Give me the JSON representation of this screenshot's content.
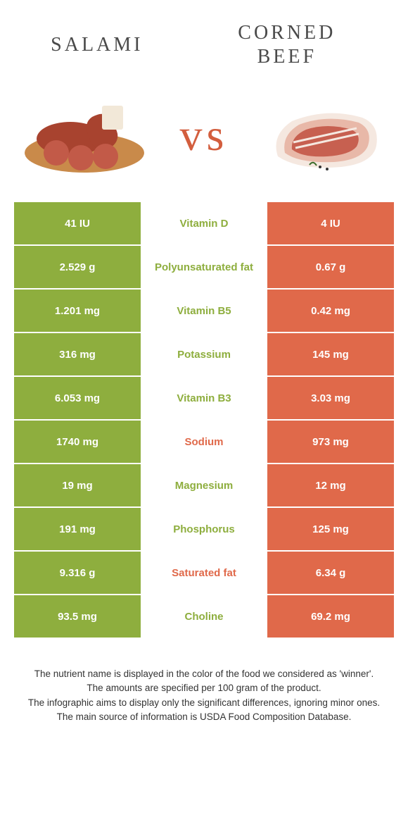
{
  "left": {
    "name": "Salami",
    "color": "#8eae3e"
  },
  "right": {
    "name": "Corned Beef",
    "color": "#e0694a"
  },
  "vs": "vs",
  "nutrient_colors": {
    "left": "#8eae3e",
    "right": "#e0694a"
  },
  "rows": [
    {
      "nutrient": "Vitamin D",
      "left": "41 IU",
      "right": "4 IU",
      "winner": "left"
    },
    {
      "nutrient": "Polyunsaturated fat",
      "left": "2.529 g",
      "right": "0.67 g",
      "winner": "left"
    },
    {
      "nutrient": "Vitamin B5",
      "left": "1.201 mg",
      "right": "0.42 mg",
      "winner": "left"
    },
    {
      "nutrient": "Potassium",
      "left": "316 mg",
      "right": "145 mg",
      "winner": "left"
    },
    {
      "nutrient": "Vitamin B3",
      "left": "6.053 mg",
      "right": "3.03 mg",
      "winner": "left"
    },
    {
      "nutrient": "Sodium",
      "left": "1740 mg",
      "right": "973 mg",
      "winner": "right"
    },
    {
      "nutrient": "Magnesium",
      "left": "19 mg",
      "right": "12 mg",
      "winner": "left"
    },
    {
      "nutrient": "Phosphorus",
      "left": "191 mg",
      "right": "125 mg",
      "winner": "left"
    },
    {
      "nutrient": "Saturated fat",
      "left": "9.316 g",
      "right": "6.34 g",
      "winner": "right"
    },
    {
      "nutrient": "Choline",
      "left": "93.5 mg",
      "right": "69.2 mg",
      "winner": "left"
    }
  ],
  "footer": [
    "The nutrient name is displayed in the color of the food we considered as 'winner'.",
    "The amounts are specified per 100 gram of the product.",
    "The infographic aims to display only the significant differences, ignoring minor ones.",
    "The main source of information is USDA Food Composition Database."
  ]
}
